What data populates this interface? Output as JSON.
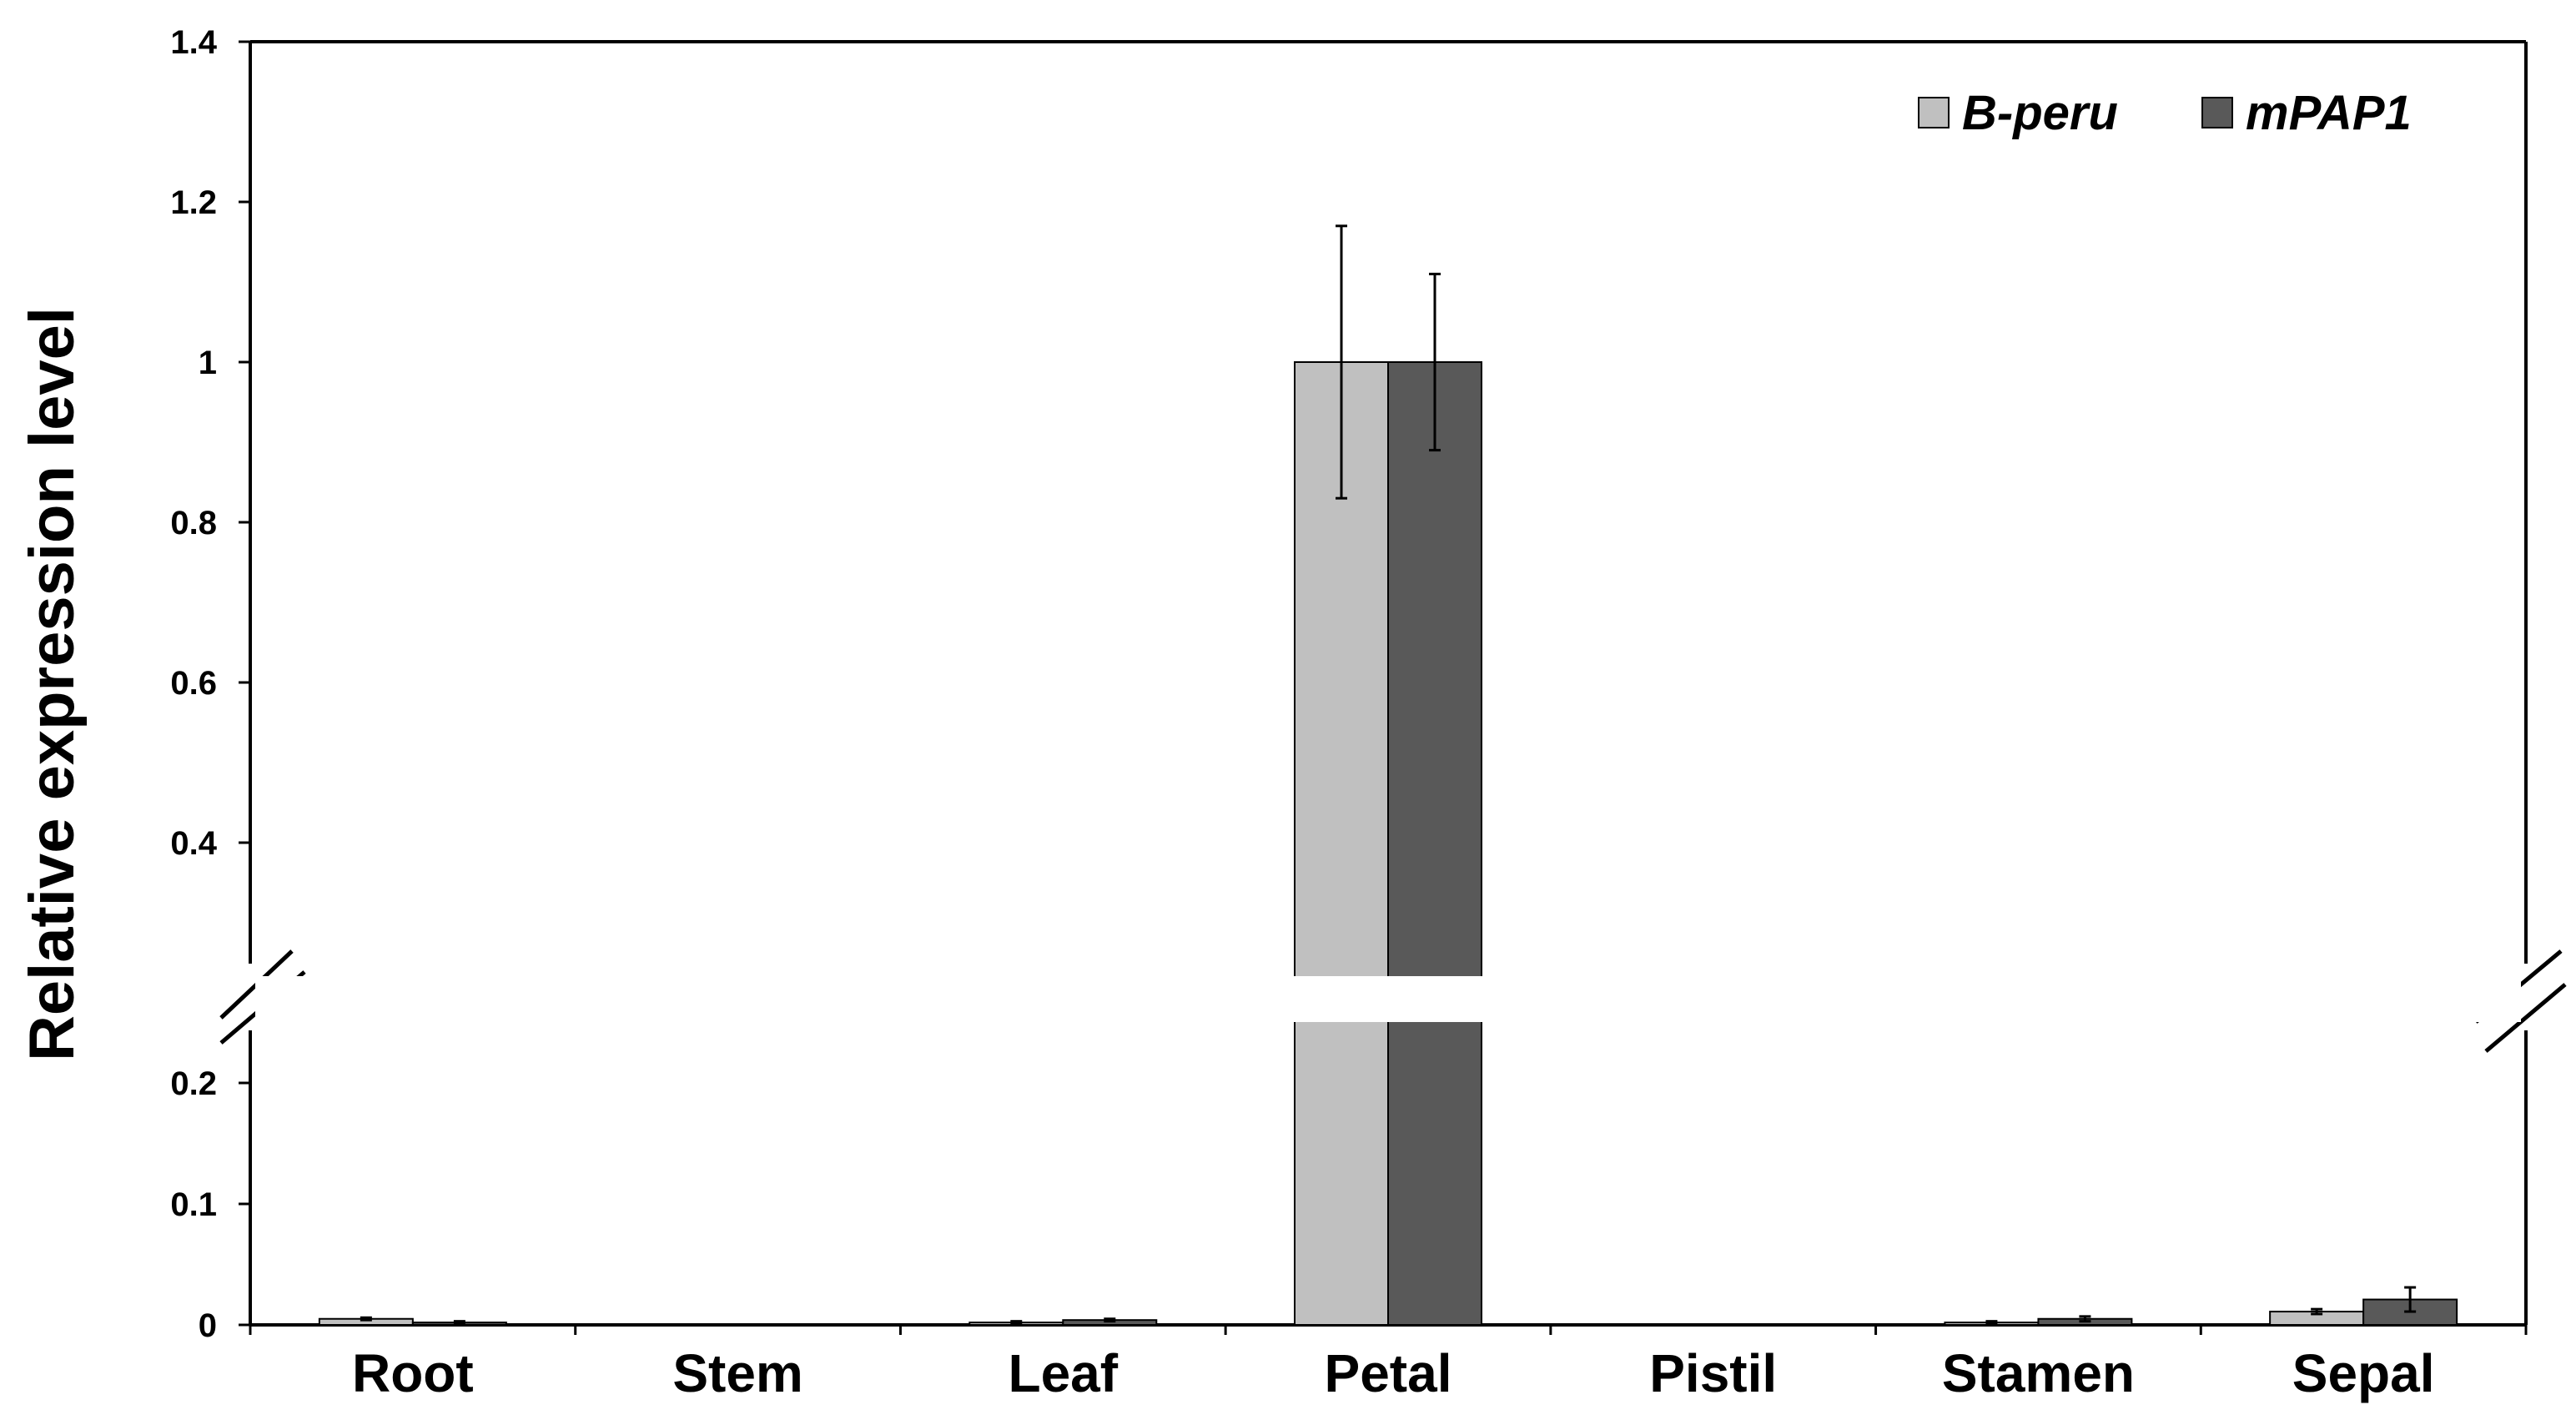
{
  "chart_data": {
    "type": "bar",
    "title": "",
    "xlabel": "",
    "ylabel": "Relative expression level",
    "categories": [
      "Root",
      "Stem",
      "Leaf",
      "Petal",
      "Pistil",
      "Stamen",
      "Sepal"
    ],
    "series": [
      {
        "name": "B-peru",
        "color": "#c0c0c0",
        "values": [
          0.005,
          0,
          0.002,
          1.0,
          0,
          0.002,
          0.011
        ],
        "errors": [
          0.001,
          0,
          0.001,
          0.17,
          0,
          0.001,
          0.002
        ]
      },
      {
        "name": "mPAP1",
        "color": "#595959",
        "values": [
          0.002,
          0,
          0.004,
          1.0,
          0,
          0.005,
          0.021
        ],
        "errors": [
          0.001,
          0,
          0.001,
          0.11,
          0,
          0.002,
          0.01
        ]
      }
    ],
    "axis_break": true,
    "lower_segment": {
      "ylim": [
        0,
        0.2
      ],
      "ticks": [
        "0",
        "0.1",
        "0.2"
      ]
    },
    "upper_segment": {
      "ylim": [
        0.3,
        1.4
      ],
      "ticks": [
        "0.4",
        "0.6",
        "0.8",
        "1",
        "1.2",
        "1.4"
      ]
    },
    "grid": false,
    "legend_position": "top-right"
  }
}
